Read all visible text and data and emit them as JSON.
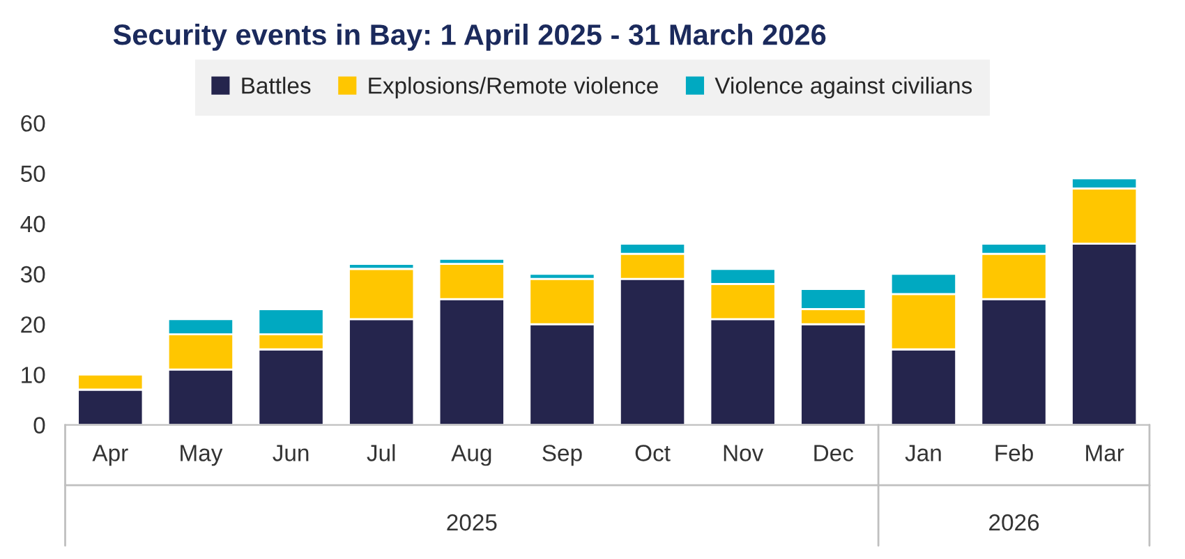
{
  "chart_data": {
    "type": "bar",
    "title": "Security events in Bay: 1 April 2025 - 31 March 2026",
    "categories": [
      "Apr",
      "May",
      "Jun",
      "Jul",
      "Aug",
      "Sep",
      "Oct",
      "Nov",
      "Dec",
      "Jan",
      "Feb",
      "Mar"
    ],
    "series": [
      {
        "name": "Battles",
        "color": "#25254d",
        "values": [
          7,
          11,
          15,
          21,
          25,
          20,
          29,
          21,
          20,
          15,
          25,
          36
        ]
      },
      {
        "name": "Explosions/Remote violence",
        "color": "#ffc600",
        "values": [
          3,
          7,
          3,
          10,
          7,
          9,
          5,
          7,
          3,
          11,
          9,
          11
        ]
      },
      {
        "name": "Violence against civilians",
        "color": "#00a9c1",
        "values": [
          null,
          3,
          5,
          1,
          1,
          1,
          2,
          3,
          4,
          4,
          2,
          2
        ]
      }
    ],
    "stacked": true,
    "ylim": [
      0,
      60
    ],
    "yticks": [
      0,
      10,
      20,
      30,
      40,
      50,
      60
    ],
    "grid": false,
    "legend": "top",
    "annotations": [
      "2025",
      "2026"
    ]
  }
}
